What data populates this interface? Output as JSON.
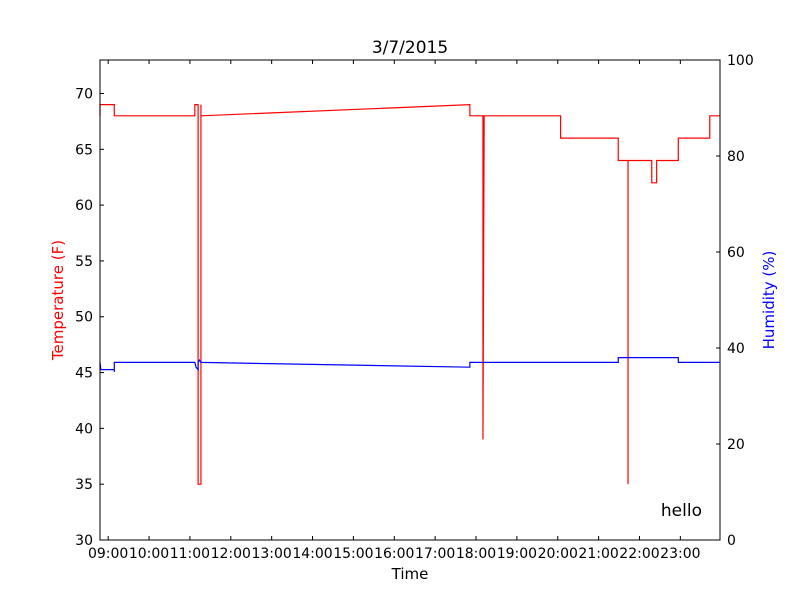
{
  "chart_data": {
    "type": "line",
    "title": "3/7/2015",
    "xlabel": "Time",
    "ylabel_left": "Temperature (F)",
    "ylabel_right": "Humidity (%)",
    "annotation": "hello",
    "xlim": [
      8.8,
      23.97
    ],
    "ylim_left": [
      30,
      73
    ],
    "ylim_right": [
      0,
      100
    ],
    "xticks": [
      9,
      10,
      11,
      12,
      13,
      14,
      15,
      16,
      17,
      18,
      19,
      20,
      21,
      22,
      23
    ],
    "xtick_labels": [
      "09:00",
      "10:00",
      "11:00",
      "12:00",
      "13:00",
      "14:00",
      "15:00",
      "16:00",
      "17:00",
      "18:00",
      "19:00",
      "20:00",
      "21:00",
      "22:00",
      "23:00"
    ],
    "yticks_left": [
      30,
      35,
      40,
      45,
      50,
      55,
      60,
      65,
      70
    ],
    "yticks_right": [
      0,
      20,
      40,
      60,
      80,
      100
    ],
    "grid": false,
    "series": [
      {
        "name": "Temperature (F)",
        "axis": "left",
        "color": "#ff0000",
        "x": [
          8.8,
          8.8,
          9.15,
          9.15,
          9.15,
          11.12,
          11.12,
          11.2,
          11.2,
          11.27,
          11.27,
          11.27,
          17.85,
          17.85,
          18.17,
          18.17,
          18.17,
          18.2,
          18.2,
          20.07,
          20.07,
          20.1,
          20.1,
          21.48,
          21.48,
          21.72,
          21.72,
          21.72,
          22.3,
          22.3,
          22.42,
          22.42,
          22.95,
          22.95,
          23.72,
          23.72,
          23.97
        ],
        "y": [
          68,
          69,
          69,
          68,
          68,
          68,
          69,
          69,
          35,
          35,
          69,
          68,
          69,
          68,
          68,
          39,
          39,
          68,
          68,
          68,
          66,
          66,
          66,
          66,
          64,
          64,
          35,
          64,
          64,
          62,
          62,
          64,
          64,
          66,
          66,
          68,
          68
        ]
      },
      {
        "name": "Humidity (%)",
        "axis": "right",
        "color": "#0000ff",
        "x": [
          8.8,
          8.8,
          8.82,
          9.15,
          9.15,
          9.15,
          11.12,
          11.15,
          11.2,
          11.2,
          11.23,
          11.27,
          17.85,
          17.85,
          21.48,
          21.48,
          22.95,
          22.95,
          23.97
        ],
        "y": [
          36,
          37,
          35.5,
          35.5,
          35,
          37,
          37,
          36,
          35.5,
          37,
          37.5,
          37,
          36,
          37,
          37,
          38,
          38,
          37,
          37
        ]
      }
    ]
  }
}
